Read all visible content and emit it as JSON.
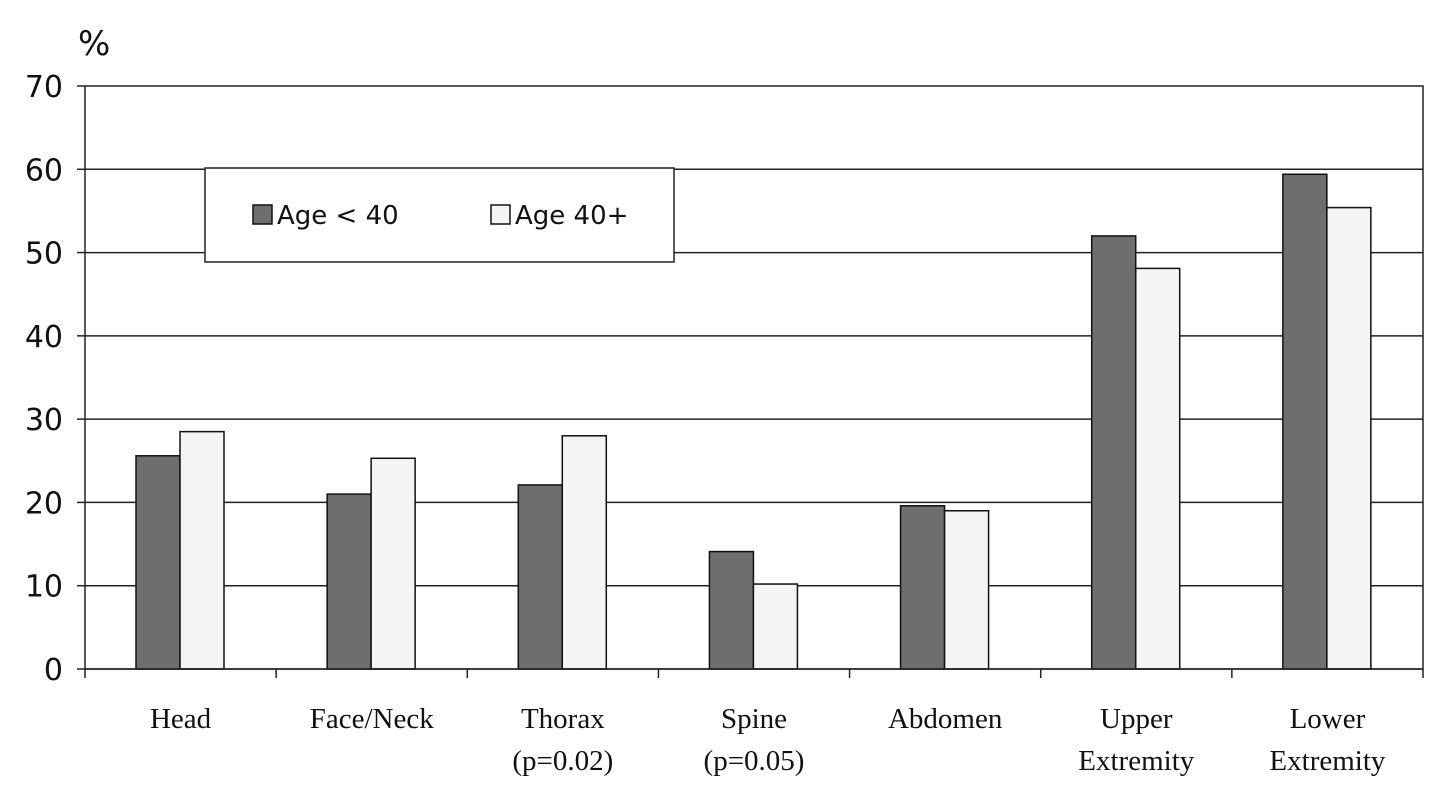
{
  "chart_data": {
    "type": "bar",
    "title": "",
    "xlabel": "",
    "ylabel": "%",
    "ylim": [
      0,
      70
    ],
    "yticks": [
      0,
      10,
      20,
      30,
      40,
      50,
      60,
      70
    ],
    "grid": true,
    "legend_position": "top-left",
    "categories": [
      [
        "Head"
      ],
      [
        "Face/Neck"
      ],
      [
        "Thorax",
        "(p=0.02)"
      ],
      [
        "Spine",
        "(p=0.05)"
      ],
      [
        "Abdomen"
      ],
      [
        "Upper",
        "Extremity"
      ],
      [
        "Lower",
        "Extremity"
      ]
    ],
    "series": [
      {
        "name": "Age < 40",
        "color": "#6e6e6e",
        "values": [
          25.6,
          21.0,
          22.1,
          14.1,
          19.6,
          52.0,
          59.4
        ]
      },
      {
        "name": "Age 40+",
        "color": "#f4f4f4",
        "values": [
          28.5,
          25.3,
          28.0,
          10.2,
          19.0,
          48.1,
          55.4
        ]
      }
    ]
  }
}
